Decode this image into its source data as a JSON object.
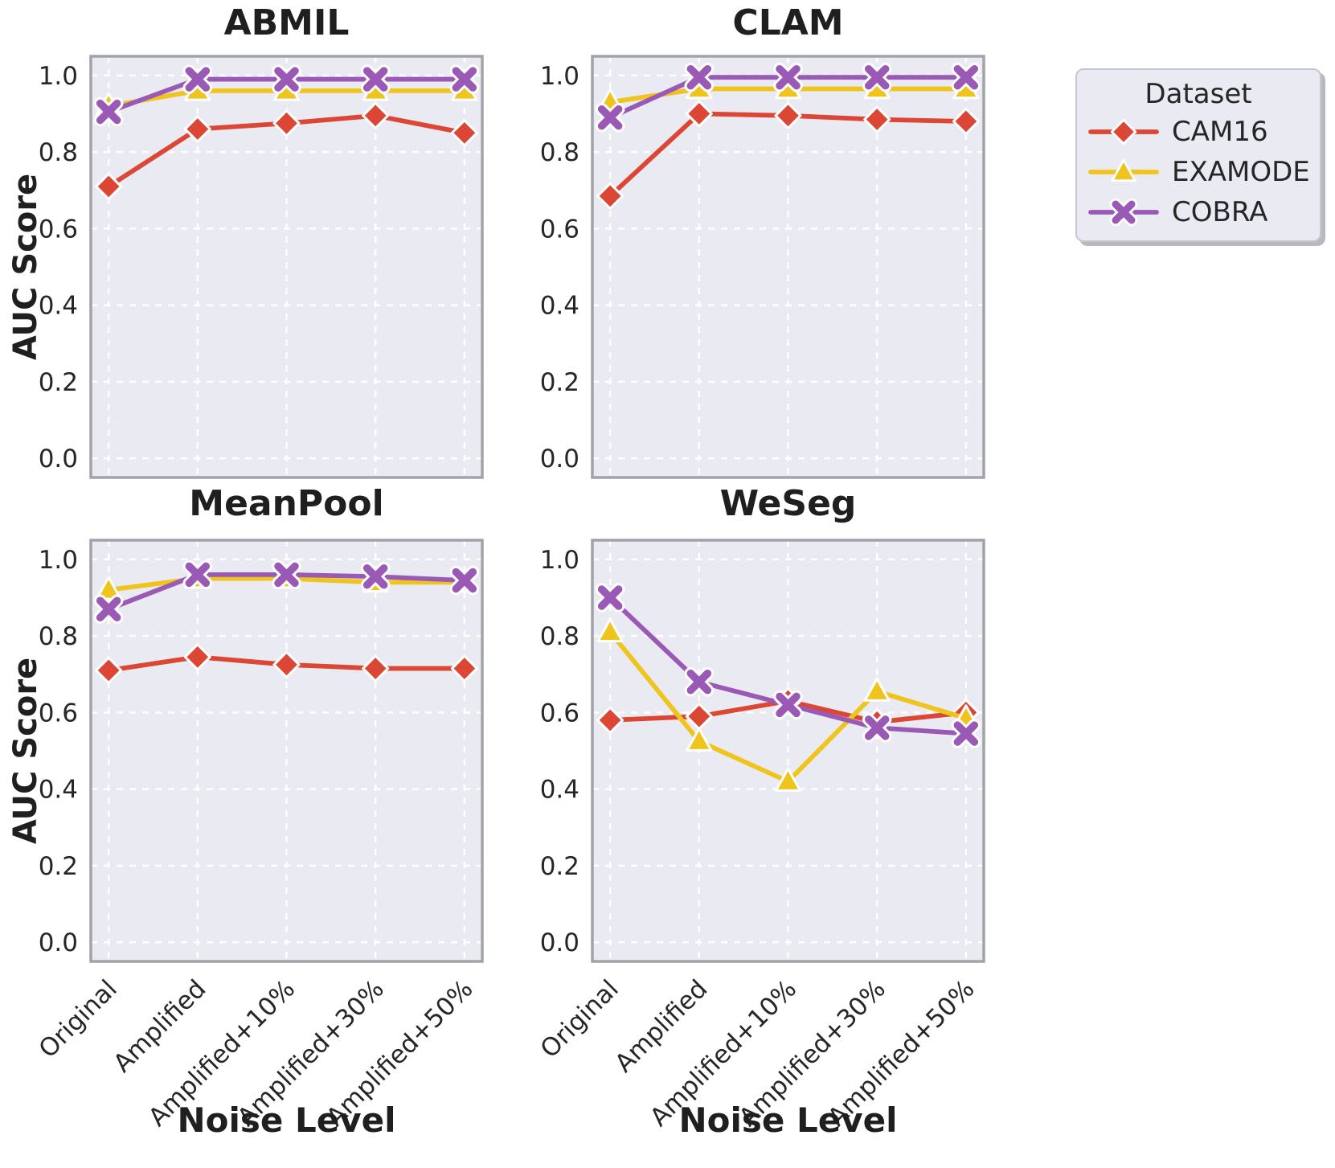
{
  "legend": {
    "title": "Dataset",
    "position": "outside upper right",
    "entries": [
      {
        "label": "CAM16",
        "color": "#DC4634",
        "marker": "diamond"
      },
      {
        "label": "EXAMODE",
        "color": "#EEC41D",
        "marker": "triangle"
      },
      {
        "label": "COBRA",
        "color": "#9B59B6",
        "marker": "x"
      }
    ]
  },
  "style": {
    "plot_bg": "#EAEAF2",
    "grid_color": "#FFFFFF",
    "frame_color": "#A2A2AB",
    "text_color": "#262626",
    "marker_edge": "#FFFFFF"
  },
  "chart_data": [
    {
      "type": "line",
      "title": "ABMIL",
      "xlabel": "",
      "ylabel": "AUC Score",
      "ylim": [
        0.0,
        1.0
      ],
      "yticks": [
        "0.0",
        "0.2",
        "0.4",
        "0.6",
        "0.8",
        "1.0"
      ],
      "grid": true,
      "categories": [
        "Original",
        "Amplified",
        "Amplified+10%",
        "Amplified+30%",
        "Amplified+50%"
      ],
      "series": [
        {
          "name": "CAM16",
          "values": [
            0.71,
            0.86,
            0.875,
            0.895,
            0.85
          ]
        },
        {
          "name": "EXAMODE",
          "values": [
            0.92,
            0.96,
            0.96,
            0.96,
            0.96
          ]
        },
        {
          "name": "COBRA",
          "values": [
            0.905,
            0.99,
            0.99,
            0.99,
            0.99
          ]
        }
      ]
    },
    {
      "type": "line",
      "title": "CLAM",
      "xlabel": "",
      "ylabel": "",
      "ylim": [
        0.0,
        1.0
      ],
      "yticks": [
        "0.0",
        "0.2",
        "0.4",
        "0.6",
        "0.8",
        "1.0"
      ],
      "grid": true,
      "categories": [
        "Original",
        "Amplified",
        "Amplified+10%",
        "Amplified+30%",
        "Amplified+50%"
      ],
      "series": [
        {
          "name": "CAM16",
          "values": [
            0.685,
            0.9,
            0.895,
            0.885,
            0.88
          ]
        },
        {
          "name": "EXAMODE",
          "values": [
            0.93,
            0.965,
            0.965,
            0.965,
            0.965
          ]
        },
        {
          "name": "COBRA",
          "values": [
            0.89,
            0.995,
            0.995,
            0.995,
            0.995
          ]
        }
      ]
    },
    {
      "type": "line",
      "title": "MeanPool",
      "xlabel": "Noise Level",
      "ylabel": "AUC Score",
      "ylim": [
        0.0,
        1.0
      ],
      "yticks": [
        "0.0",
        "0.2",
        "0.4",
        "0.6",
        "0.8",
        "1.0"
      ],
      "grid": true,
      "x_tick_rotation": 45,
      "categories": [
        "Original",
        "Amplified",
        "Amplified+10%",
        "Amplified+30%",
        "Amplified+50%"
      ],
      "series": [
        {
          "name": "CAM16",
          "values": [
            0.71,
            0.745,
            0.725,
            0.715,
            0.715
          ]
        },
        {
          "name": "EXAMODE",
          "values": [
            0.92,
            0.95,
            0.95,
            0.94,
            0.94
          ]
        },
        {
          "name": "COBRA",
          "values": [
            0.87,
            0.96,
            0.96,
            0.955,
            0.945
          ]
        }
      ]
    },
    {
      "type": "line",
      "title": "WeSeg",
      "xlabel": "Noise Level",
      "ylabel": "",
      "ylim": [
        0.0,
        1.0
      ],
      "yticks": [
        "0.0",
        "0.2",
        "0.4",
        "0.6",
        "0.8",
        "1.0"
      ],
      "grid": true,
      "x_tick_rotation": 45,
      "categories": [
        "Original",
        "Amplified",
        "Amplified+10%",
        "Amplified+30%",
        "Amplified+50%"
      ],
      "series": [
        {
          "name": "CAM16",
          "values": [
            0.58,
            0.59,
            0.63,
            0.575,
            0.6
          ]
        },
        {
          "name": "EXAMODE",
          "values": [
            0.81,
            0.525,
            0.42,
            0.655,
            0.585
          ]
        },
        {
          "name": "COBRA",
          "values": [
            0.9,
            0.68,
            0.62,
            0.56,
            0.545
          ]
        }
      ]
    }
  ]
}
